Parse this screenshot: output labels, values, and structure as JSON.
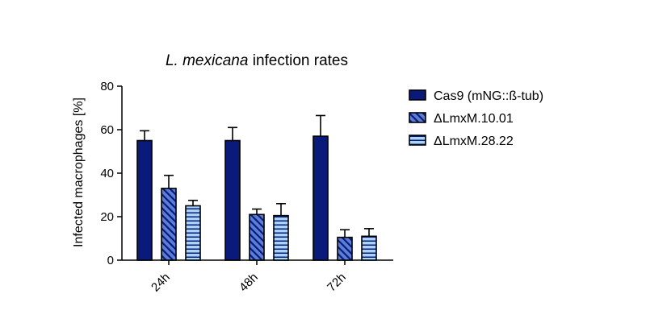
{
  "chart_data": {
    "type": "bar",
    "title_italic": "L. mexicana",
    "title_rest": " infection rates",
    "xlabel": "",
    "ylabel": "Infected macrophages [%]",
    "ylim": [
      0,
      80
    ],
    "yticks": [
      0,
      20,
      40,
      60,
      80
    ],
    "categories": [
      "24h",
      "48h",
      "72h"
    ],
    "legend_position": "right",
    "series": [
      {
        "name": "Cas9 (mNG::ß-tub)",
        "values": [
          55,
          55,
          57
        ],
        "errors": [
          4.5,
          6,
          9.5
        ],
        "color": "#0a1a7a",
        "pattern": "solid"
      },
      {
        "name": "ΔLmxM.10.01",
        "values": [
          33,
          21,
          10.5
        ],
        "errors": [
          6,
          2.5,
          3.5
        ],
        "color": "#5b7fd6",
        "pattern": "diagonal"
      },
      {
        "name": "ΔLmxM.28.22",
        "values": [
          25,
          20.5,
          11
        ],
        "errors": [
          2.5,
          5.5,
          3.5
        ],
        "color": "#a9d4f5",
        "pattern": "horizontal"
      }
    ]
  }
}
